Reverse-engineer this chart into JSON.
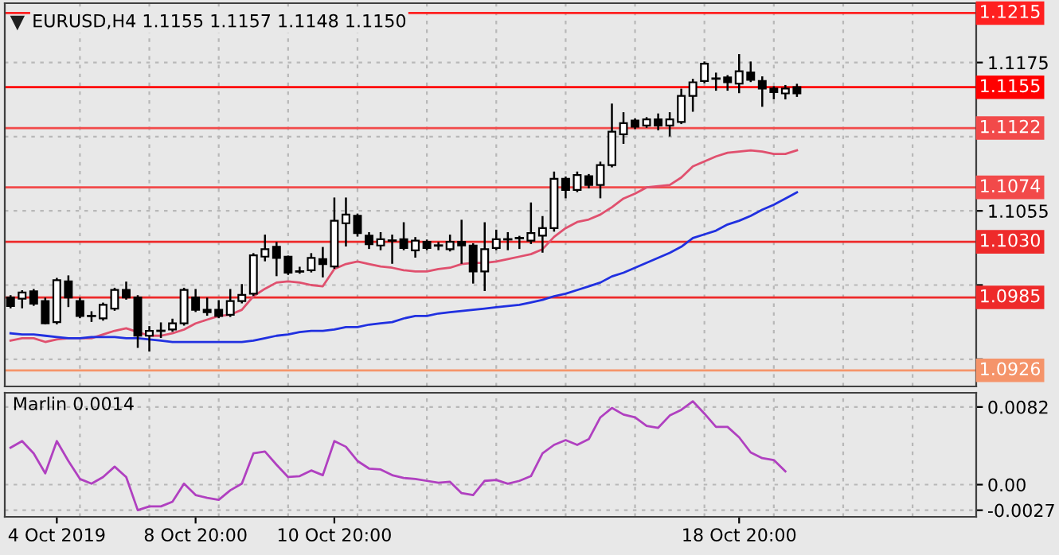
{
  "chart_data": [
    {
      "type": "candlestick",
      "title": "EURUSD,H4 1.1155 1.1157 1.1148 1.1150",
      "categories": [
        null,
        null,
        null,
        null,
        null,
        null,
        null,
        null,
        null,
        null,
        null,
        null,
        null,
        null,
        null,
        null,
        null,
        null,
        null,
        null,
        null,
        null,
        null,
        null,
        null,
        null,
        null,
        null,
        null,
        null,
        null,
        null,
        null,
        null,
        null,
        null,
        null,
        null,
        null,
        null,
        null,
        null,
        null,
        null,
        null,
        null,
        null,
        null,
        null,
        null,
        null,
        null,
        null,
        null,
        null,
        null,
        null,
        null,
        null,
        null,
        null,
        null,
        null,
        null,
        null,
        null,
        null,
        null,
        null
      ],
      "ohlc": [
        [
          1.0985,
          1.0986,
          1.0977,
          1.0978
        ],
        [
          1.0984,
          1.099,
          1.0977,
          1.0989
        ],
        [
          1.099,
          1.0991,
          1.0979,
          1.098
        ],
        [
          1.0982,
          1.0984,
          1.0964,
          1.0964
        ],
        [
          1.0965,
          1.1,
          1.0964,
          1.0999
        ],
        [
          1.0998,
          1.1002,
          1.0978,
          1.0985
        ],
        [
          1.0982,
          1.0984,
          1.0969,
          1.097
        ],
        [
          1.097,
          1.0973,
          1.0966,
          1.097
        ],
        [
          1.0968,
          1.098,
          1.0967,
          1.0979
        ],
        [
          1.0976,
          1.0992,
          1.0975,
          1.0991
        ],
        [
          1.0991,
          1.0997,
          1.0984,
          1.0985
        ],
        [
          1.0985,
          1.0986,
          1.0945,
          1.0954
        ],
        [
          1.0954,
          1.0961,
          1.0942,
          1.0958
        ],
        [
          1.0958,
          1.0964,
          1.0953,
          1.0958
        ],
        [
          1.0959,
          1.0967,
          1.0958,
          1.0964
        ],
        [
          1.0964,
          1.0992,
          1.0963,
          1.0991
        ],
        [
          1.0985,
          1.0991,
          1.0974,
          1.0975
        ],
        [
          1.0975,
          1.0984,
          1.0971,
          1.0973
        ],
        [
          1.0975,
          1.0982,
          1.0969,
          1.097
        ],
        [
          1.0971,
          1.0991,
          1.097,
          1.0982
        ],
        [
          1.0982,
          1.0995,
          1.0981,
          1.0987
        ],
        [
          1.0988,
          1.102,
          1.0987,
          1.1019
        ],
        [
          1.1018,
          1.1035,
          1.1015,
          1.1024
        ],
        [
          1.1026,
          1.1029,
          1.1003,
          1.1017
        ],
        [
          1.1018,
          1.1018,
          1.1004,
          1.1005
        ],
        [
          1.1006,
          1.1009,
          1.1005,
          1.1006
        ],
        [
          1.1007,
          1.102,
          1.1006,
          1.1017
        ],
        [
          1.1016,
          1.1025,
          1.1002,
          1.1012
        ],
        [
          1.101,
          1.1065,
          1.1009,
          1.1047
        ],
        [
          1.1045,
          1.1065,
          1.1027,
          1.1052
        ],
        [
          1.1051,
          1.1052,
          1.1035,
          1.1037
        ],
        [
          1.1035,
          1.1037,
          1.1025,
          1.1028
        ],
        [
          1.1027,
          1.1037,
          1.1024,
          1.1032
        ],
        [
          1.1031,
          1.1035,
          1.1013,
          1.1031
        ],
        [
          1.1032,
          1.1045,
          1.1024,
          1.1025
        ],
        [
          1.1023,
          1.1033,
          1.1018,
          1.1031
        ],
        [
          1.103,
          1.1031,
          1.1024,
          1.1025
        ],
        [
          1.1027,
          1.1029,
          1.1024,
          1.1027
        ],
        [
          1.1024,
          1.1035,
          1.1023,
          1.103
        ],
        [
          1.103,
          1.1047,
          1.1013,
          1.1027
        ],
        [
          1.1027,
          1.1028,
          1.0997,
          1.1006
        ],
        [
          1.1006,
          1.1045,
          1.0991,
          1.1024
        ],
        [
          1.1025,
          1.1039,
          1.1024,
          1.1032
        ],
        [
          1.1032,
          1.1037,
          1.1024,
          1.1032
        ],
        [
          1.1033,
          1.1034,
          1.1025,
          1.1033
        ],
        [
          1.1031,
          1.1061,
          1.1029,
          1.1037
        ],
        [
          1.1035,
          1.105,
          1.1022,
          1.1041
        ],
        [
          1.1041,
          1.1086,
          1.1039,
          1.1081
        ],
        [
          1.1081,
          1.1082,
          1.1066,
          1.1072
        ],
        [
          1.1072,
          1.1086,
          1.1071,
          1.1084
        ],
        [
          1.1083,
          1.1084,
          1.1074,
          1.1076
        ],
        [
          1.1076,
          1.1094,
          1.1066,
          1.1092
        ],
        [
          1.1092,
          1.1141,
          1.1091,
          1.1119
        ],
        [
          1.1117,
          1.1134,
          1.111,
          1.1126
        ],
        [
          1.1128,
          1.1129,
          1.1122,
          1.1123
        ],
        [
          1.1124,
          1.113,
          1.1123,
          1.1129
        ],
        [
          1.1129,
          1.1133,
          1.1121,
          1.1124
        ],
        [
          1.1124,
          1.1134,
          1.1116,
          1.1129
        ],
        [
          1.1127,
          1.1153,
          1.1126,
          1.1148
        ],
        [
          1.1148,
          1.1161,
          1.1136,
          1.1159
        ],
        [
          1.116,
          1.1175,
          1.1159,
          1.1174
        ],
        [
          1.1162,
          1.1166,
          1.1153,
          1.1162
        ],
        [
          1.1163,
          1.1164,
          1.1153,
          1.1159
        ],
        [
          1.1158,
          1.1181,
          1.1151,
          1.1168
        ],
        [
          1.1167,
          1.1175,
          1.116,
          1.1161
        ],
        [
          1.116,
          1.1163,
          1.114,
          1.1154
        ],
        [
          1.1154,
          1.1155,
          1.1146,
          1.1151
        ],
        [
          1.115,
          1.1156,
          1.1146,
          1.1154
        ],
        [
          1.1155,
          1.1157,
          1.1148,
          1.115
        ]
      ],
      "series": [
        {
          "type": "line",
          "color": "#e0506e",
          "values": [
            1.095,
            1.0952,
            1.0952,
            1.0949,
            1.0951,
            1.0952,
            1.0952,
            1.0952,
            1.0955,
            1.0958,
            1.096,
            1.0957,
            1.0954,
            1.0954,
            1.0956,
            1.0959,
            1.0964,
            1.0967,
            1.097,
            1.0971,
            1.0975,
            1.0986,
            1.0992,
            1.0997,
            1.0998,
            1.0997,
            1.0995,
            1.0994,
            1.1008,
            1.1012,
            1.1014,
            1.1012,
            1.101,
            1.1009,
            1.1007,
            1.1006,
            1.1006,
            1.1008,
            1.1009,
            1.1012,
            1.1013,
            1.1013,
            1.1014,
            1.1016,
            1.1018,
            1.102,
            1.1024,
            1.1034,
            1.1041,
            1.1046,
            1.1048,
            1.1052,
            1.1058,
            1.1065,
            1.1069,
            1.1074,
            1.1075,
            1.1076,
            1.1082,
            1.1091,
            1.1095,
            1.1099,
            1.1102,
            1.1103,
            1.1104,
            1.1103,
            1.1101,
            1.1101,
            1.1104
          ]
        },
        {
          "type": "line",
          "color": "#2030e0",
          "values": [
            1.0956,
            1.0955,
            1.0955,
            1.0954,
            1.0953,
            1.0952,
            1.0952,
            1.0953,
            1.0953,
            1.0953,
            1.0952,
            1.0952,
            1.0951,
            1.095,
            1.0949,
            1.0949,
            1.0949,
            1.0949,
            1.0949,
            1.0949,
            1.0949,
            1.095,
            1.0952,
            1.0954,
            1.0955,
            1.0957,
            1.0958,
            1.0958,
            1.0959,
            1.0961,
            1.0961,
            1.0963,
            1.0964,
            1.0965,
            1.0968,
            1.097,
            1.097,
            1.0972,
            1.0973,
            1.0974,
            1.0975,
            1.0976,
            1.0977,
            1.0978,
            1.0979,
            1.0981,
            1.0983,
            1.0986,
            1.0988,
            1.0991,
            1.0994,
            1.0997,
            1.1002,
            1.1005,
            1.1009,
            1.1013,
            1.1017,
            1.1021,
            1.1026,
            1.1033,
            1.1036,
            1.1039,
            1.1044,
            1.1047,
            1.1051,
            1.1056,
            1.106,
            1.1065,
            1.107
          ]
        }
      ],
      "ylim": [
        1.0913,
        1.1223
      ],
      "yticks": [
        1.1175,
        {
          "value": 1.1115,
          "label": null
        },
        1.1055,
        {
          "value": 1.0995,
          "label": null
        },
        {
          "value": 1.0935,
          "label": null
        }
      ],
      "ref_lines": [
        {
          "axis": "y",
          "value": 1.1215,
          "label": "1.1215",
          "color": "#ff2020"
        },
        {
          "axis": "y",
          "value": 1.1155,
          "label": "1.1155",
          "color": "#ff0000"
        },
        {
          "axis": "y",
          "value": 1.1122,
          "label": "1.1122",
          "color": "#f24a4a"
        },
        {
          "axis": "y",
          "value": 1.1074,
          "label": "1.1074",
          "color": "#f24a4a"
        },
        {
          "axis": "y",
          "value": 1.103,
          "label": "1.1030",
          "color": "#ee2a2a"
        },
        {
          "axis": "y",
          "value": 1.0985,
          "label": "1.0985",
          "color": "#ee2a2a"
        },
        {
          "axis": "y",
          "value": 1.0926,
          "label": "1.0926",
          "color": "#f5946a"
        }
      ],
      "grid": true,
      "tick_labels": "y"
    },
    {
      "type": "line",
      "title": "Marlin 0.0014",
      "categories": [
        null,
        null,
        null,
        null,
        "4 Oct 2019",
        null,
        null,
        null,
        null,
        null,
        null,
        null,
        null,
        null,
        null,
        null,
        "8 Oct 20:00",
        null,
        null,
        null,
        null,
        null,
        null,
        null,
        null,
        null,
        null,
        null,
        "10 Oct 20:00",
        null,
        null,
        null,
        null,
        null,
        null,
        null,
        null,
        null,
        null,
        null,
        null,
        null,
        null,
        null,
        null,
        null,
        null,
        null,
        null,
        null,
        null,
        null,
        null,
        null,
        null,
        null,
        null,
        null,
        null,
        null,
        null,
        null,
        null,
        "18 Oct 20:00",
        null,
        null,
        null,
        null,
        null
      ],
      "series": [
        {
          "color": "#b040c0",
          "values": [
            0.0039,
            0.0046,
            0.0033,
            0.0012,
            0.0046,
            0.0025,
            0.0006,
            0.0001,
            0.0008,
            0.0019,
            0.0008,
            -0.0027,
            -0.0023,
            -0.0023,
            -0.0018,
            0.0001,
            -0.0011,
            -0.0014,
            -0.0016,
            -0.0006,
            0.0001,
            0.0033,
            0.0035,
            0.0021,
            0.0008,
            0.0009,
            0.0015,
            0.001,
            0.0046,
            0.004,
            0.0025,
            0.0017,
            0.0016,
            0.001,
            0.0007,
            0.0006,
            0.0004,
            0.0002,
            0.0003,
            -0.0009,
            -0.0011,
            0.0004,
            0.0005,
            0.0001,
            0.0004,
            0.0009,
            0.0033,
            0.0042,
            0.0047,
            0.0042,
            0.0048,
            0.0071,
            0.0081,
            0.0074,
            0.0071,
            0.0062,
            0.006,
            0.0073,
            0.0079,
            0.0088,
            0.0075,
            0.0061,
            0.0061,
            0.005,
            0.0034,
            0.0028,
            0.0026,
            0.0014,
            null
          ]
        }
      ],
      "ylim": [
        -0.0034,
        0.0097
      ],
      "yticks": [
        0.0082,
        {
          "value": 0,
          "label": "0.00"
        },
        {
          "value": -0.0027,
          "label": "-0.0027"
        }
      ],
      "grid": true
    }
  ]
}
